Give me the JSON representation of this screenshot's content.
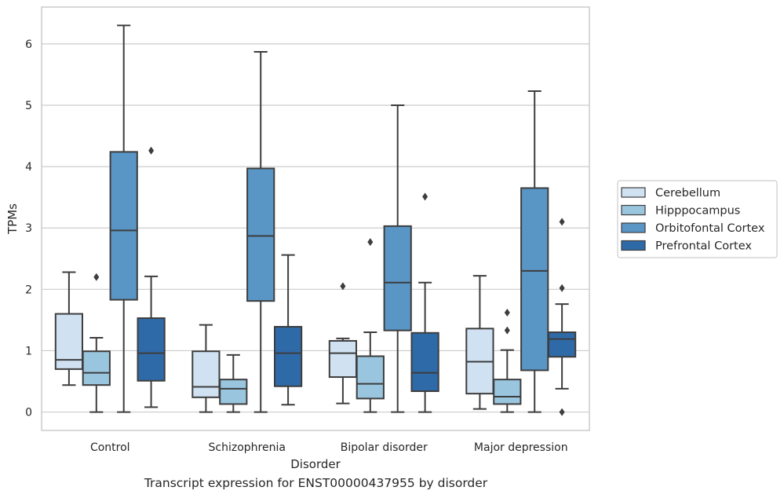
{
  "caption": "Transcript expression for ENST00000437955 by disorder",
  "chart_data": {
    "type": "box",
    "title": "",
    "xlabel": "Disorder",
    "ylabel": "TPMs",
    "ylim": [
      -0.3,
      6.6
    ],
    "yticks": [
      0,
      1,
      2,
      3,
      4,
      5,
      6
    ],
    "grid": "horizontal",
    "legend_position": "right",
    "categories": [
      "Control",
      "Schizophrenia",
      "Bipolar disorder",
      "Major depression"
    ],
    "series": [
      {
        "name": "Cerebellum",
        "color": "#d0e1f2",
        "boxes": [
          {
            "whisker_low": 0.44,
            "q1": 0.7,
            "median": 0.85,
            "q3": 1.6,
            "whisker_high": 2.28,
            "outliers": []
          },
          {
            "whisker_low": 0.0,
            "q1": 0.24,
            "median": 0.41,
            "q3": 0.99,
            "whisker_high": 1.42,
            "outliers": []
          },
          {
            "whisker_low": 0.14,
            "q1": 0.57,
            "median": 0.96,
            "q3": 1.16,
            "whisker_high": 1.2,
            "outliers": [
              2.05
            ]
          },
          {
            "whisker_low": 0.05,
            "q1": 0.3,
            "median": 0.82,
            "q3": 1.36,
            "whisker_high": 2.22,
            "outliers": []
          }
        ]
      },
      {
        "name": "Hipppocampus",
        "color": "#9ac5df",
        "boxes": [
          {
            "whisker_low": 0.0,
            "q1": 0.44,
            "median": 0.64,
            "q3": 0.99,
            "whisker_high": 1.21,
            "outliers": [
              2.2
            ]
          },
          {
            "whisker_low": 0.0,
            "q1": 0.13,
            "median": 0.38,
            "q3": 0.53,
            "whisker_high": 0.93,
            "outliers": []
          },
          {
            "whisker_low": 0.0,
            "q1": 0.22,
            "median": 0.46,
            "q3": 0.91,
            "whisker_high": 1.3,
            "outliers": [
              2.77
            ]
          },
          {
            "whisker_low": 0.0,
            "q1": 0.13,
            "median": 0.25,
            "q3": 0.53,
            "whisker_high": 1.01,
            "outliers": [
              1.33,
              1.62
            ]
          }
        ]
      },
      {
        "name": "Orbitofontal Cortex",
        "color": "#5996c6",
        "boxes": [
          {
            "whisker_low": 0.0,
            "q1": 1.83,
            "median": 2.96,
            "q3": 4.24,
            "whisker_high": 6.3,
            "outliers": []
          },
          {
            "whisker_low": 0.0,
            "q1": 1.81,
            "median": 2.87,
            "q3": 3.97,
            "whisker_high": 5.87,
            "outliers": []
          },
          {
            "whisker_low": 0.0,
            "q1": 1.33,
            "median": 2.11,
            "q3": 3.03,
            "whisker_high": 5.0,
            "outliers": []
          },
          {
            "whisker_low": 0.0,
            "q1": 0.68,
            "median": 2.3,
            "q3": 3.65,
            "whisker_high": 5.23,
            "outliers": []
          }
        ]
      },
      {
        "name": "Prefrontal Cortex",
        "color": "#2f6aa8",
        "boxes": [
          {
            "whisker_low": 0.08,
            "q1": 0.51,
            "median": 0.96,
            "q3": 1.53,
            "whisker_high": 2.21,
            "outliers": [
              4.26
            ]
          },
          {
            "whisker_low": 0.12,
            "q1": 0.42,
            "median": 0.96,
            "q3": 1.39,
            "whisker_high": 2.56,
            "outliers": []
          },
          {
            "whisker_low": 0.0,
            "q1": 0.34,
            "median": 0.64,
            "q3": 1.29,
            "whisker_high": 2.11,
            "outliers": [
              3.51
            ]
          },
          {
            "whisker_low": 0.38,
            "q1": 0.9,
            "median": 1.19,
            "q3": 1.3,
            "whisker_high": 1.76,
            "outliers": [
              0.0,
              2.02,
              3.1
            ]
          }
        ]
      }
    ]
  }
}
